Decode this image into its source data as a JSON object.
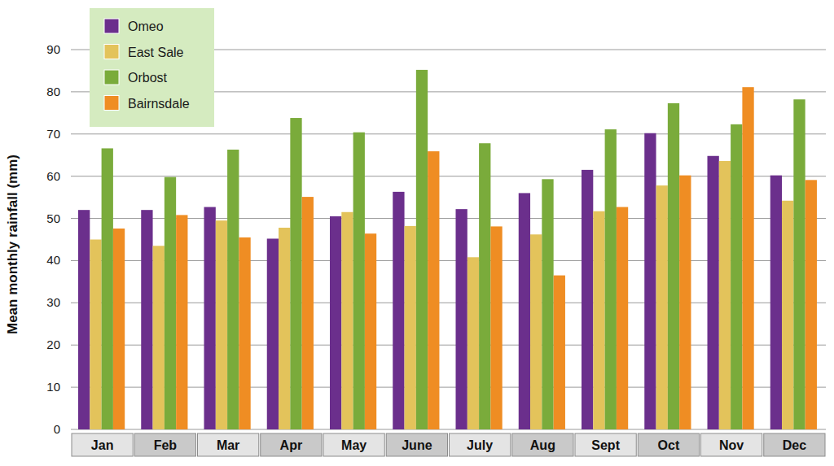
{
  "chart_data": {
    "type": "bar",
    "y_label": "Mean monthly rainfall (mm)",
    "categories": [
      "Jan",
      "Feb",
      "Mar",
      "Apr",
      "May",
      "June",
      "July",
      "Aug",
      "Sept",
      "Oct",
      "Nov",
      "Dec"
    ],
    "series": [
      {
        "name": "Omeo",
        "color": "#6b2f8c",
        "values": [
          52,
          52,
          52.7,
          45.2,
          50.5,
          56.3,
          52.2,
          56,
          61.5,
          70.2,
          64.8,
          60.2
        ]
      },
      {
        "name": "East Sale",
        "color": "#e3c35b",
        "values": [
          45,
          43.5,
          49.5,
          47.8,
          51.5,
          48.2,
          40.8,
          46.2,
          51.7,
          57.8,
          63.6,
          54.2
        ]
      },
      {
        "name": "Orbost",
        "color": "#7aab3b",
        "values": [
          66.6,
          59.8,
          66.3,
          73.8,
          70.4,
          85.2,
          67.8,
          59.3,
          71.1,
          77.3,
          72.3,
          78.2
        ]
      },
      {
        "name": "Bairnsdale",
        "color": "#ef8d23",
        "values": [
          47.6,
          50.8,
          45.5,
          55.1,
          46.4,
          65.9,
          48.1,
          36.5,
          52.7,
          60.2,
          81.1,
          59.1
        ]
      }
    ],
    "ylim": [
      0,
      90
    ],
    "yticks": [
      0,
      10,
      20,
      30,
      40,
      50,
      60,
      70,
      80,
      90
    ],
    "grid": true,
    "legend": "upper left"
  }
}
